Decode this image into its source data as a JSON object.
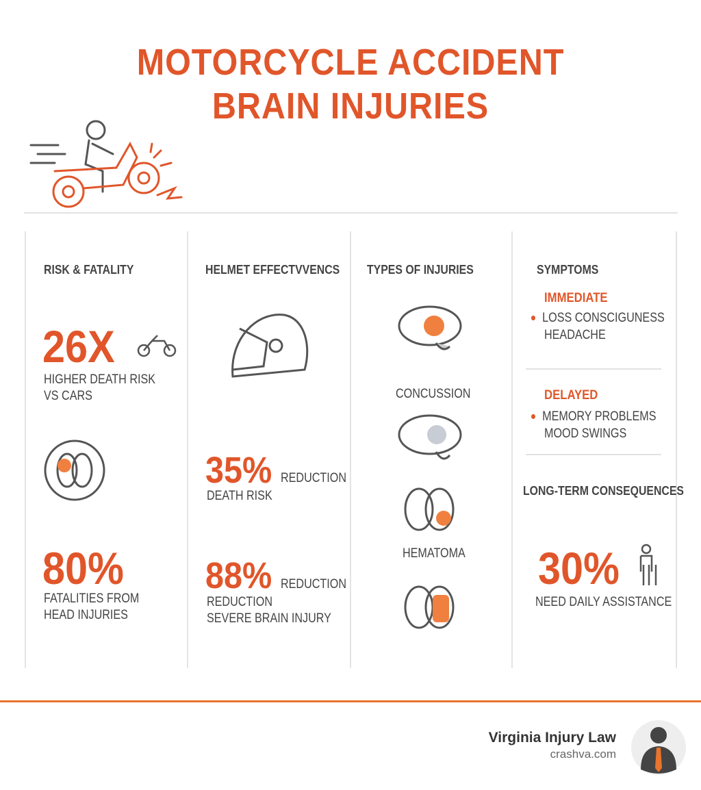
{
  "title": {
    "line1": "MOTORCYCLE ACCIDENT",
    "line2": "BRAIN INJURIES"
  },
  "colors": {
    "accent": "#e0562a",
    "text": "#444444"
  },
  "columns": {
    "risk": {
      "heading": "RISK & FATALITY",
      "stat1": "26X",
      "stat1_text1": "HIGHER DEATH RISK",
      "stat1_text2": "VS CARS",
      "stat2": "80%",
      "stat2_text1": "FATALITIES FROM",
      "stat2_text2": "HEAD INJURIES"
    },
    "helmet": {
      "heading": "HELMET EFFECTVVENCS",
      "stat1": "35%",
      "stat1_suffix": "REDUCTION",
      "stat1_text": "DEATH RISK",
      "stat2": "88%",
      "stat2_suffix": "REDUCTION",
      "stat2_text1": "REDUCTION",
      "stat2_text2": "SEVERE BRAIN INJURY"
    },
    "types": {
      "heading": "TYPES OF INJURIES",
      "items": [
        "CONCUSSION",
        "HEMATOMA"
      ]
    },
    "symptoms": {
      "heading": "SYMPTOMS",
      "immediate_label": "IMMEDIATE",
      "immediate": [
        "LOSS CONSCIGUNESS",
        "HEADACHE"
      ],
      "delayed_label": "DELAYED",
      "delayed": [
        "MEMORY PROBLEMS",
        "MOOD SWINGS"
      ],
      "longterm_heading": "LONG-TERM CONSEQUENCES",
      "stat": "30%",
      "stat_text": "NEED DAILY ASSISTANCE"
    }
  },
  "footer": {
    "brand": "Virginia Injury Law",
    "url": "crashva.com"
  }
}
